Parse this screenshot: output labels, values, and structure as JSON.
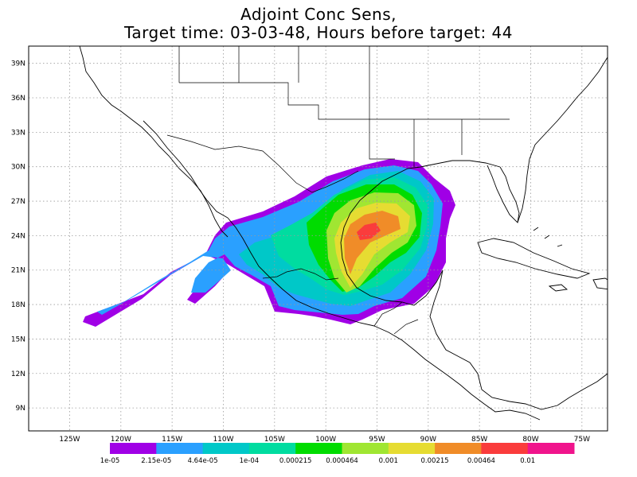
{
  "title": {
    "line1": "Adjoint Conc Sens,",
    "line2": "Target time: 03-03-48, Hours before target: 44"
  },
  "map": {
    "lon_range": [
      -129,
      -72.5
    ],
    "lat_range": [
      7,
      40.5
    ],
    "lat_ticks": [
      {
        "value": 39,
        "label": "39N"
      },
      {
        "value": 36,
        "label": "36N"
      },
      {
        "value": 33,
        "label": "33N"
      },
      {
        "value": 30,
        "label": "30N"
      },
      {
        "value": 27,
        "label": "27N"
      },
      {
        "value": 24,
        "label": "24N"
      },
      {
        "value": 21,
        "label": "21N"
      },
      {
        "value": 18,
        "label": "18N"
      },
      {
        "value": 15,
        "label": "15N"
      },
      {
        "value": 12,
        "label": "12N"
      },
      {
        "value": 9,
        "label": "9N"
      }
    ],
    "lon_ticks": [
      {
        "value": -125,
        "label": "125W"
      },
      {
        "value": -120,
        "label": "120W"
      },
      {
        "value": -115,
        "label": "115W"
      },
      {
        "value": -110,
        "label": "110W"
      },
      {
        "value": -105,
        "label": "105W"
      },
      {
        "value": -100,
        "label": "100W"
      },
      {
        "value": -95,
        "label": "95W"
      },
      {
        "value": -90,
        "label": "90W"
      },
      {
        "value": -85,
        "label": "85W"
      },
      {
        "value": -80,
        "label": "80W"
      },
      {
        "value": -75,
        "label": "75W"
      }
    ],
    "grid": "dotted",
    "grid_color": "#9a9a9a",
    "coast_color": "#000000"
  },
  "colorbar": {
    "colors": [
      "#a000e6",
      "#2aa0ff",
      "#00c8c8",
      "#00dca0",
      "#00dc00",
      "#a0e632",
      "#e6dc32",
      "#f08c28",
      "#fa3c3c",
      "#f0148c"
    ],
    "labels": [
      "1e-05",
      "2.15e-05",
      "4.64e-05",
      "1e-04",
      "0.000215",
      "0.000464",
      "0.001",
      "0.00215",
      "0.00464",
      "0.01"
    ]
  },
  "chart_data": {
    "type": "heatmap",
    "variable": "Adjoint Conc Sens",
    "levels": [
      1e-05,
      2.15e-05,
      4.64e-05,
      0.0001,
      0.000215,
      0.000464,
      0.001,
      0.00215,
      0.00464,
      0.01
    ],
    "max_region_center": {
      "lon": -95.5,
      "lat": 23.5
    },
    "extent": {
      "lon": [
        -123.5,
        -84.5
      ],
      "lat": [
        15.5,
        30.5
      ]
    }
  }
}
